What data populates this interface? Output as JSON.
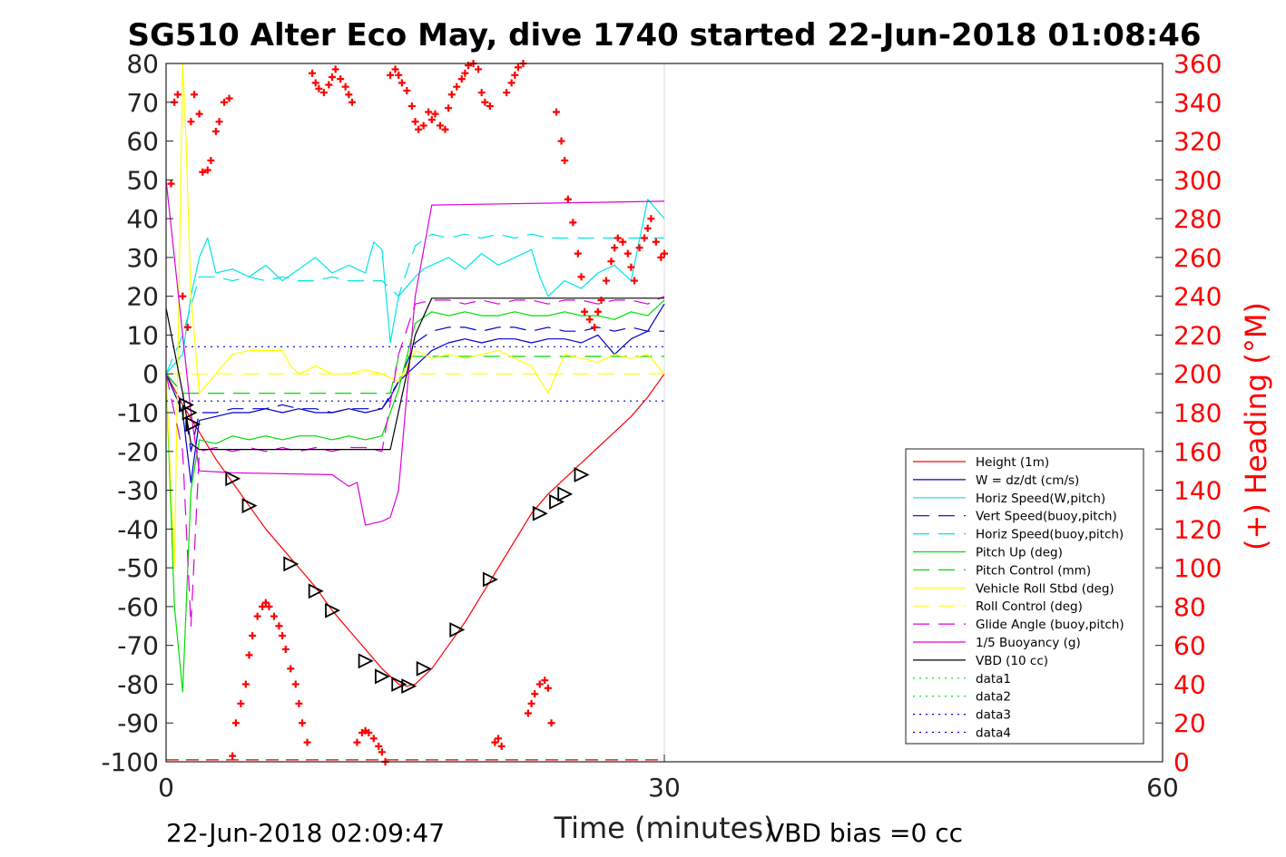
{
  "chart_data": {
    "type": "line",
    "title": "SG510 Alter Eco May, dive 1740 started 22-Jun-2018 01:08:46",
    "xlabel": "Time (minutes)",
    "ylabel_right": "(+) Heading (°M)",
    "xlim": [
      0,
      60
    ],
    "ylim": [
      -100,
      80
    ],
    "ylim_right": [
      0,
      360
    ],
    "x_ticks": [
      "0",
      "30",
      "60"
    ],
    "y_ticks": [
      "80",
      "70",
      "60",
      "50",
      "40",
      "30",
      "20",
      "10",
      "0",
      "-10",
      "-20",
      "-30",
      "-40",
      "-50",
      "-60",
      "-70",
      "-80",
      "-90",
      "-100"
    ],
    "y_ticks_right": [
      "360",
      "340",
      "320",
      "300",
      "280",
      "260",
      "240",
      "220",
      "200",
      "180",
      "160",
      "140",
      "120",
      "100",
      "80",
      "60",
      "40",
      "20",
      "0"
    ],
    "grid": "x at 30 only",
    "legend_position": "lower-right",
    "footer_left": "22-Jun-2018 02:09:47",
    "footer_right": "VBD bias =0 cc",
    "series": [
      {
        "name": "Height (1m)",
        "color": "#ff0000",
        "style": "solid",
        "x": [
          0,
          1,
          2,
          3,
          4,
          5,
          6,
          7,
          8,
          9,
          10,
          11,
          12,
          13,
          14,
          14.5,
          15,
          16,
          17,
          18,
          19,
          20,
          21,
          22,
          23,
          24,
          25,
          26,
          27,
          28,
          29,
          30
        ],
        "y": [
          0,
          -8,
          -15,
          -22,
          -28,
          -34,
          -40,
          -45,
          -50,
          -55,
          -61,
          -66,
          -71,
          -76,
          -80,
          -80.5,
          -80,
          -76,
          -70,
          -64,
          -57,
          -50,
          -43,
          -36,
          -31,
          -27,
          -23,
          -19,
          -15,
          -11,
          -6,
          0
        ]
      },
      {
        "name": "W = dz/dt (cm/s)",
        "color": "#0000cc",
        "style": "solid",
        "x": [
          0,
          0.5,
          1,
          1.5,
          2,
          3,
          4,
          5,
          6,
          7,
          8,
          9,
          10,
          11,
          12,
          13,
          13.5,
          14,
          15,
          16,
          17,
          18,
          19,
          20,
          21,
          22,
          23,
          24,
          25,
          26,
          27,
          28,
          29,
          30
        ],
        "y": [
          0,
          -5,
          -10,
          -28,
          -12,
          -11,
          -10,
          -10,
          -9,
          -10,
          -9,
          -10,
          -10,
          -9,
          -10,
          -9,
          -6,
          -2,
          2,
          6,
          8,
          9,
          8,
          9,
          9,
          8,
          9,
          9,
          8,
          10,
          5,
          9,
          11,
          18
        ]
      },
      {
        "name": "Horiz Speed(W,pitch)",
        "color": "#00e5e5",
        "style": "solid",
        "x": [
          0,
          1,
          1.5,
          2,
          2.5,
          3,
          4,
          5,
          6,
          7,
          8,
          9,
          10,
          11,
          12,
          12.5,
          13,
          13.5,
          14,
          15,
          15.5,
          16,
          17,
          18,
          19,
          20,
          21,
          22,
          22.5,
          23,
          24,
          25,
          26,
          27,
          28,
          29,
          30
        ],
        "y": [
          0,
          5,
          20,
          30,
          35,
          26,
          27,
          25,
          28,
          24,
          27,
          30,
          26,
          28,
          26,
          34,
          32,
          8,
          20,
          25,
          27,
          28,
          30,
          27,
          31,
          28,
          30,
          32,
          25,
          20,
          24,
          22,
          26,
          28,
          24,
          45,
          40
        ]
      },
      {
        "name": "Vert Speed(buoy,pitch)",
        "color": "#0000cc",
        "style": "dash",
        "x": [
          0,
          1,
          1.5,
          2,
          3,
          4,
          5,
          6,
          7,
          8,
          9,
          10,
          11,
          12,
          13,
          14,
          15,
          16,
          17,
          18,
          19,
          20,
          21,
          22,
          23,
          24,
          25,
          26,
          27,
          28,
          29,
          30
        ],
        "y": [
          0,
          -5,
          -20,
          -10,
          -10,
          -9,
          -9,
          -9,
          -8,
          -9,
          -9,
          -10,
          -9,
          -9,
          -9,
          -2,
          8,
          11,
          12,
          12,
          11,
          12,
          12,
          11,
          12,
          11,
          11,
          12,
          11,
          12,
          11,
          11
        ]
      },
      {
        "name": "Horiz Speed(buoy,pitch)",
        "color": "#00e5e5",
        "style": "dash",
        "x": [
          0,
          1,
          2,
          3,
          4,
          5,
          6,
          7,
          8,
          9,
          10,
          11,
          12,
          13,
          14,
          15,
          16,
          17,
          18,
          19,
          20,
          21,
          22,
          23,
          24,
          25,
          26,
          27,
          28,
          29,
          30
        ],
        "y": [
          0,
          10,
          25,
          25,
          24,
          25,
          24,
          25,
          24,
          24,
          25,
          24,
          24,
          24,
          20,
          33,
          36,
          35,
          36,
          35,
          36,
          35,
          36,
          35,
          35,
          35,
          35,
          35,
          35,
          35,
          35
        ]
      },
      {
        "name": "Pitch Up (deg)",
        "color": "#00dd00",
        "style": "solid",
        "x": [
          0,
          0.5,
          1,
          1.5,
          2,
          3,
          4,
          5,
          6,
          7,
          8,
          9,
          10,
          11,
          12,
          13,
          14,
          15,
          16,
          17,
          18,
          19,
          20,
          21,
          22,
          23,
          24,
          25,
          26,
          27,
          28,
          29,
          30
        ],
        "y": [
          0,
          -60,
          -82,
          -30,
          -17,
          -18,
          -16,
          -17,
          -16,
          -17,
          -16,
          -16,
          -17,
          -16,
          -17,
          -16,
          -4,
          13,
          16,
          15,
          16,
          15,
          15,
          16,
          15,
          15,
          16,
          15,
          15,
          14,
          16,
          15,
          19
        ]
      },
      {
        "name": "Pitch Control (mm)",
        "color": "#00dd00",
        "style": "dash",
        "x": [
          0,
          1,
          1.5,
          2,
          13.5,
          14,
          30
        ],
        "y": [
          0,
          -5,
          -5,
          -5,
          -5,
          4.5,
          4.5
        ]
      },
      {
        "name": "Vehicle Roll Stbd (deg)",
        "color": "#ffff00",
        "style": "solid",
        "x": [
          0,
          0.5,
          1,
          1.2,
          1.5,
          2,
          3,
          4,
          5,
          6,
          7,
          7.5,
          8,
          9,
          10,
          11,
          12,
          13,
          14,
          15,
          16,
          17,
          18,
          19,
          20,
          21,
          22,
          23,
          24,
          25,
          26,
          27,
          28,
          29,
          30
        ],
        "y": [
          0,
          -50,
          80,
          60,
          20,
          -5,
          0,
          5,
          6,
          6,
          6,
          2,
          0,
          2,
          0,
          0,
          1,
          0,
          -2,
          6,
          4,
          5,
          4,
          5,
          6,
          4,
          2,
          -5,
          5,
          4,
          3,
          5,
          4,
          5,
          0
        ]
      },
      {
        "name": "Roll Control (deg)",
        "color": "#ffff00",
        "style": "dash",
        "x": [
          0,
          30
        ],
        "y": [
          0,
          0
        ]
      },
      {
        "name": "Glide Angle (buoy,pitch)",
        "color": "#dd00dd",
        "style": "dash",
        "x": [
          0,
          1,
          1.5,
          2,
          3,
          4,
          5,
          6,
          7,
          8,
          9,
          10,
          11,
          12,
          13,
          14,
          15,
          16,
          17,
          18,
          19,
          20,
          21,
          22,
          23,
          24,
          25,
          26,
          27,
          28,
          29,
          30
        ],
        "y": [
          0,
          -20,
          -65,
          -20,
          -19,
          -20,
          -19,
          -20,
          -19,
          -20,
          -19,
          -20,
          -19,
          -19,
          -20,
          5,
          18,
          19,
          19,
          18,
          19,
          18,
          19,
          19,
          18,
          19,
          19,
          18,
          19,
          19,
          18,
          20
        ]
      },
      {
        "name": "1/5 Buoyancy (g)",
        "color": "#dd00dd",
        "style": "solid",
        "x": [
          0,
          1,
          1.5,
          2,
          4,
          10,
          11,
          11.5,
          12,
          13,
          13.5,
          14,
          15,
          16,
          30
        ],
        "y": [
          50,
          10,
          -10,
          -25,
          -25.5,
          -26,
          -29,
          -28,
          -39,
          -38,
          -37,
          -30,
          20,
          43.5,
          44.5
        ]
      },
      {
        "name": "VBD (10 cc)",
        "color": "#000000",
        "style": "solid",
        "x": [
          0,
          1,
          1.5,
          2,
          13,
          13.5,
          15,
          16,
          30
        ],
        "y": [
          17,
          -5,
          -18,
          -19.5,
          -19.5,
          -19.5,
          10,
          19.5,
          19.5
        ]
      },
      {
        "name": "data1",
        "color": "#00dd00",
        "style": "dot",
        "x": [],
        "y": []
      },
      {
        "name": "data2",
        "color": "#00dd00",
        "style": "dot",
        "x": [],
        "y": []
      },
      {
        "name": "data3",
        "color": "#0000cc",
        "style": "dot",
        "x": [
          0,
          30
        ],
        "y": [
          7,
          7
        ]
      },
      {
        "name": "data4",
        "color": "#0000cc",
        "style": "dot",
        "x": [
          0,
          30
        ],
        "y": [
          -7,
          -7
        ]
      }
    ],
    "triangle_markers": {
      "color": "#000000",
      "points": [
        [
          1.2,
          -8
        ],
        [
          1.4,
          -10
        ],
        [
          1.6,
          -13
        ],
        [
          4,
          -27
        ],
        [
          5,
          -34
        ],
        [
          7.5,
          -49
        ],
        [
          9,
          -56
        ],
        [
          10,
          -61
        ],
        [
          12,
          -74
        ],
        [
          13,
          -78
        ],
        [
          14,
          -80
        ],
        [
          14.6,
          -80.5
        ],
        [
          15.5,
          -76
        ],
        [
          17.5,
          -66
        ],
        [
          19.5,
          -53
        ],
        [
          22.5,
          -36
        ],
        [
          23.5,
          -33
        ],
        [
          24,
          -31
        ],
        [
          25,
          -26
        ]
      ]
    },
    "heading_series": {
      "name": "(+) Heading (°M)",
      "color": "#ff0000",
      "marker": "+",
      "x": [
        0.3,
        0.5,
        0.7,
        1,
        1.3,
        1.5,
        1.7,
        2,
        2.2,
        2.5,
        2.7,
        3,
        3.2,
        3.5,
        3.8,
        4,
        4.2,
        4.5,
        4.8,
        5,
        5.2,
        5.5,
        5.8,
        6,
        6.2,
        6.5,
        6.8,
        7,
        7.2,
        7.5,
        7.8,
        8,
        8.2,
        8.5,
        8.8,
        9,
        9.2,
        9.5,
        9.8,
        10,
        10.2,
        10.5,
        10.8,
        11,
        11.2,
        11.5,
        11.8,
        12,
        12.2,
        12.5,
        12.8,
        13,
        13.2,
        13.5,
        13.8,
        14,
        14.2,
        14.5,
        14.8,
        15,
        15.2,
        15.5,
        15.8,
        16,
        16.2,
        16.5,
        16.8,
        17,
        17.2,
        17.5,
        17.8,
        18,
        18.2,
        18.5,
        18.8,
        19,
        19.2,
        19.5,
        19.8,
        20,
        20.2,
        20.5,
        20.8,
        21,
        21.2,
        21.5,
        21.8,
        22,
        22.2,
        22.5,
        22.8,
        23,
        23.2,
        23.5,
        23.8,
        24,
        24.2,
        24.5,
        24.8,
        25,
        25.2,
        25.5,
        25.8,
        26,
        26.2,
        26.5,
        26.8,
        27,
        27.2,
        27.5,
        27.8,
        28,
        28.2,
        28.5,
        28.8,
        29,
        29.2,
        29.5,
        29.8,
        30
      ],
      "y": [
        298,
        340,
        344,
        240,
        224,
        330,
        344,
        334,
        304,
        305,
        310,
        325,
        330,
        340,
        342,
        3,
        20,
        30,
        40,
        55,
        65,
        75,
        80,
        82,
        80,
        75,
        70,
        65,
        58,
        48,
        40,
        30,
        20,
        10,
        355,
        350,
        347,
        345,
        349,
        353,
        357,
        352,
        348,
        344,
        340,
        10,
        15,
        16,
        15,
        12,
        8,
        5,
        0,
        354,
        357,
        354,
        350,
        346,
        338,
        330,
        326,
        328,
        335,
        331,
        334,
        328,
        326,
        337,
        344,
        348,
        352,
        355,
        359,
        360,
        357,
        345,
        340,
        338,
        10,
        12,
        8,
        345,
        350,
        354,
        358,
        360,
        25,
        30,
        35,
        40,
        42,
        38,
        20,
        335,
        320,
        310,
        290,
        278,
        262,
        250,
        232,
        228,
        224,
        232,
        238,
        248,
        258,
        265,
        270,
        268,
        262,
        255,
        248,
        265,
        270,
        275,
        280,
        268,
        260,
        262
      ]
    }
  }
}
